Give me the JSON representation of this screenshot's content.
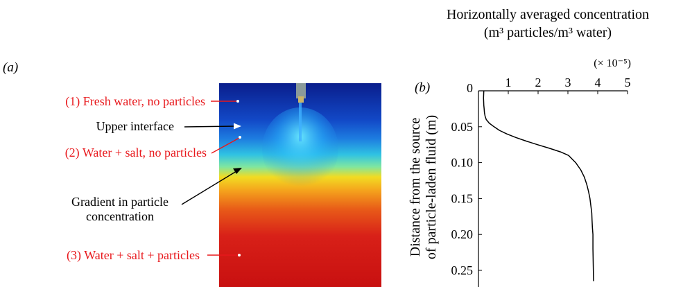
{
  "panel_a": {
    "panel_label": "(a)",
    "annotations": [
      {
        "id": "fresh",
        "text": "(1) Fresh water, no particles",
        "color": "#e8181c"
      },
      {
        "id": "upper",
        "text": "Upper interface",
        "color": "#000000"
      },
      {
        "id": "salt",
        "text": "(2) Water + salt, no particles",
        "color": "#e8181c"
      },
      {
        "id": "gradient",
        "text": [
          "Gradient in particle",
          "concentration"
        ],
        "color": "#000000"
      },
      {
        "id": "particles",
        "text": "(3) Water + salt + particles",
        "color": "#e8181c"
      }
    ],
    "colors": {
      "deep_blue": "#0a1e8c",
      "blue": "#1560d8",
      "cyan": "#33d2dc",
      "yellow": "#f2dc23",
      "orange": "#f07a17",
      "red": "#d21616"
    }
  },
  "chart_data": {
    "type": "line",
    "panel_label": "(b)",
    "title": [
      "Horizontally averaged concentration",
      "(m³ particles/m³ water)"
    ],
    "x_multiplier_label": "(× 10⁻⁵)",
    "ylabel": [
      "Distance from the source",
      "of particle-laden fluid (m)"
    ],
    "x_ticks": [
      "0",
      "1",
      "2",
      "3",
      "4",
      "5"
    ],
    "y_ticks": [
      "0",
      "0.05",
      "0.10",
      "0.15",
      "0.20",
      "0.25"
    ],
    "xlim": [
      0,
      5
    ],
    "ylim": [
      0,
      0.265
    ],
    "y_inverted": true,
    "x_axis_position": "top",
    "series": [
      {
        "x": [
          0.18,
          0.17,
          0.18,
          0.19,
          0.2,
          0.22,
          0.26,
          0.36,
          0.52,
          0.7,
          0.95,
          1.25,
          1.6,
          1.98,
          2.38,
          2.75,
          3.02,
          3.26,
          3.43,
          3.55,
          3.63,
          3.69,
          3.74,
          3.77,
          3.8,
          3.81,
          3.82,
          3.84,
          3.84,
          3.85,
          3.86
        ],
        "y": [
          0.0,
          0.01,
          0.02,
          0.025,
          0.03,
          0.035,
          0.04,
          0.045,
          0.05,
          0.055,
          0.06,
          0.065,
          0.07,
          0.075,
          0.08,
          0.085,
          0.09,
          0.1,
          0.11,
          0.12,
          0.13,
          0.14,
          0.15,
          0.16,
          0.17,
          0.18,
          0.19,
          0.2,
          0.22,
          0.24,
          0.265
        ]
      }
    ]
  }
}
